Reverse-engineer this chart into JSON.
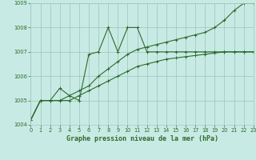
{
  "title": "Graphe pression niveau de la mer (hPa)",
  "bg_color": "#c8eae4",
  "grid_color": "#a0ccbf",
  "line_color": "#2d6b2d",
  "xlim": [
    0,
    23
  ],
  "ylim": [
    1004,
    1009
  ],
  "yticks": [
    1004,
    1005,
    1006,
    1007,
    1008,
    1009
  ],
  "xticks": [
    0,
    1,
    2,
    3,
    4,
    5,
    6,
    7,
    8,
    9,
    10,
    11,
    12,
    13,
    14,
    15,
    16,
    17,
    18,
    19,
    20,
    21,
    22,
    23
  ],
  "series": [
    {
      "x": [
        0,
        1,
        2,
        3,
        4,
        5,
        6,
        7,
        8,
        9,
        10,
        11,
        12,
        13,
        14,
        15,
        16,
        17,
        18,
        19,
        20,
        21,
        22,
        23
      ],
      "y": [
        1004.2,
        1005.0,
        1005.0,
        1005.5,
        1005.2,
        1005.0,
        1006.9,
        1007.0,
        1008.0,
        1007.0,
        1008.0,
        1008.0,
        1007.0,
        1007.0,
        1007.0,
        1007.0,
        1007.0,
        1007.0,
        1007.0,
        1007.0,
        1007.0,
        1007.0,
        1007.0,
        1007.0
      ]
    },
    {
      "x": [
        0,
        1,
        2,
        3,
        4,
        5,
        6,
        7,
        8,
        9,
        10,
        11,
        12,
        13,
        14,
        15,
        16,
        17,
        18,
        19,
        20,
        21,
        22,
        23
      ],
      "y": [
        1004.2,
        1005.0,
        1005.0,
        1005.0,
        1005.2,
        1005.4,
        1005.6,
        1006.0,
        1006.3,
        1006.6,
        1006.9,
        1007.1,
        1007.2,
        1007.3,
        1007.4,
        1007.5,
        1007.6,
        1007.7,
        1007.8,
        1008.0,
        1008.3,
        1008.7,
        1009.0,
        1009.0
      ]
    },
    {
      "x": [
        0,
        1,
        2,
        3,
        4,
        5,
        6,
        7,
        8,
        9,
        10,
        11,
        12,
        13,
        14,
        15,
        16,
        17,
        18,
        19,
        20,
        21,
        22,
        23
      ],
      "y": [
        1004.2,
        1005.0,
        1005.0,
        1005.0,
        1005.0,
        1005.2,
        1005.4,
        1005.6,
        1005.8,
        1006.0,
        1006.2,
        1006.4,
        1006.5,
        1006.6,
        1006.7,
        1006.75,
        1006.8,
        1006.85,
        1006.9,
        1006.95,
        1007.0,
        1007.0,
        1007.0,
        1007.0
      ]
    }
  ]
}
